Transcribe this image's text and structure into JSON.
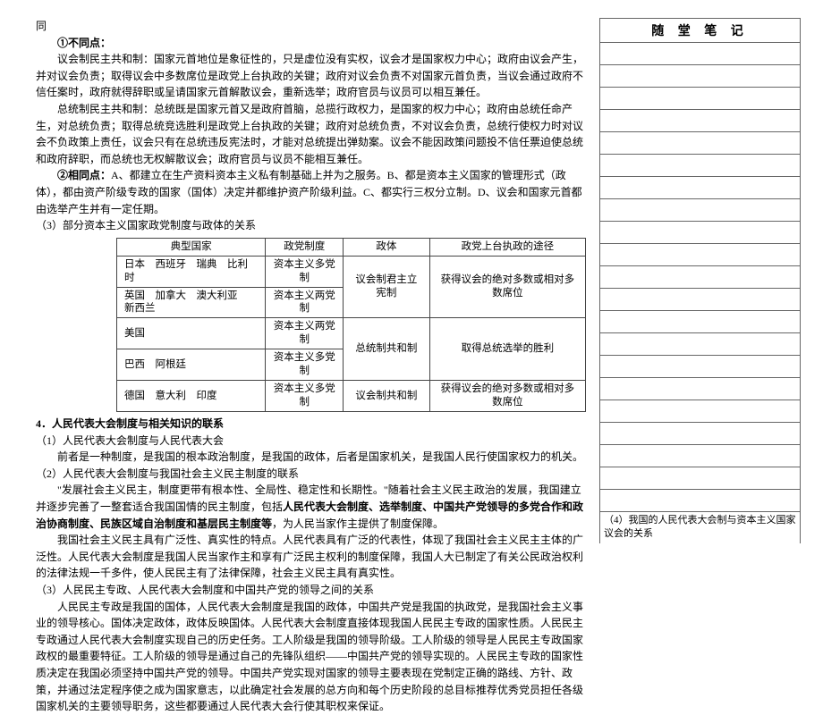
{
  "top_line": "同",
  "h_diff": "①不同点：",
  "p1": "议会制民主共和制：国家元首地位是象征性的，只是虚位没有实权，议会才是国家权力中心；政府由议会产生，并对议会负责；取得议会中多数席位是政党上台执政的关键；政府对议会负责不对国家元首负责，当议会通过政府不信任案时，政府就得辞职或呈请国家元首解散议会，重新选举；政府官员与议员可以相互兼任。",
  "p2": "总统制民主共和制：总统既是国家元首又是政府首脑，总揽行政权力，是国家的权力中心；政府由总统任命产生，对总统负责；取得总统竞选胜利是政党上台执政的关键；政府对总统负责，不对议会负责，总统行使权力时对议会不负政策上责任，议会只有在总统违反宪法时，才能对总统提出弹劾案。议会不能因政策问题投不信任票迫使总统和政府辞职，而总统也无权解散议会；政府官员与议员不能相互兼任。",
  "h_same": "②相同点：",
  "p3": "A、都建立在生产资料资本主义私有制基础上并为之服务。B、都是资本主义国家的管理形式（政体），都由资产阶级专政的国家（国体）决定并都维护资产阶级利益。C、都实行三权分立制。D、议会和国家元首都由选举产生并有一定任期。",
  "p4": "（3）部分资本主义国家政党制度与政体的关系",
  "table": {
    "headers": [
      "典型国家",
      "政党制度",
      "政体",
      "政党上台执政的途径"
    ],
    "rows": [
      {
        "c": "日本　西班牙　瑞典　比利时",
        "p": "资本主义多党制",
        "g": "议会制君主立宪制",
        "r": "获得议会的绝对多数或相对多数席位",
        "gspan": 2,
        "rspan": 2
      },
      {
        "c": "英国　加拿大　澳大利亚　新西兰",
        "p": "资本主义两党制"
      },
      {
        "c": "美国",
        "p": "资本主义两党制",
        "g": "总统制共和制",
        "r": "取得总统选举的胜利",
        "gspan": 2,
        "rspan": 2
      },
      {
        "c": "巴西　阿根廷",
        "p": "资本主义多党制"
      },
      {
        "c": "德国　意大利　印度",
        "p": "资本主义多党制",
        "g": "议会制共和制",
        "r": "获得议会的绝对多数或相对多数席位",
        "gspan": 1,
        "rspan": 1
      }
    ]
  },
  "s4_head": "4．人民代表大会制度与相关知识的联系",
  "s4_1": "（1）人民代表大会制度与人民代表大会",
  "s4_1p": "前者是一种制度，是我国的根本政治制度，是我国的政体，后者是国家机关，是我国人民行使国家权力的机关。",
  "s4_2": "（2）人民代表大会制度与我国社会主义民主制度的联系",
  "s4_2p1a": "\"发展社会主义民主，制度更带有根本性、全局性、稳定性和长期性。\"随着社会主义民主政治的发展，我国建立并逐步完善了一整套适合我国国情的民主制度，包括",
  "s4_2p1b": "人民代表大会制度、选举制度、中国共产党领导的多党合作和政治协商制度、民族区域自治制度和基层民主制度等",
  "s4_2p1c": "，为人民当家作主提供了制度保障。",
  "s4_2p2": "我国社会主义民主具有广泛性、真实性的特点。人民代表具有广泛的代表性，体现了我国社会主义民主主体的广泛性。人民代表大会制度是我国人民当家作主和享有广泛民主权利的制度保障，我国人大已制定了有关公民政治权利的法律法规一千多件，使人民民主有了法律保障，社会主义民主具有真实性。",
  "s4_3": "（3）人民民主专政、人民代表大会制度和中国共产党的领导之间的关系",
  "s4_3p": "人民民主专政是我国的国体，人民代表大会制度是我国的政体，中国共产党是我国的执政党，是我国社会主义事业的领导核心。国体决定政体，政体反映国体。人民代表大会制度直接体现我国人民民主专政的国家性质。人民民主专政通过人民代表大会制度实现自己的历史任务。工人阶级是我国的领导阶级。工人阶级的领导是人民民主专政国家政权的最重要特征。工人阶级的领导是通过自己的先锋队组织——中国共产党的领导实现的。人民民主专政的国家性质决定在我国必须坚持中国共产党的领导。中国共产党实现对国家的领导主要表现在党制定正确的路线、方针、政策，并通过法定程序使之成为国家意志，以此确定社会发展的总方向和每个历史阶段的总目标推荐优秀党员担任各级国家机关的主要领导职务，这些都要通过人民代表大会行使其职权来保证。",
  "sidebar_title": "随 堂 笔 记",
  "sidebar_note": "（4）我国的人民代表大会制与资本主义国家议会的关系"
}
